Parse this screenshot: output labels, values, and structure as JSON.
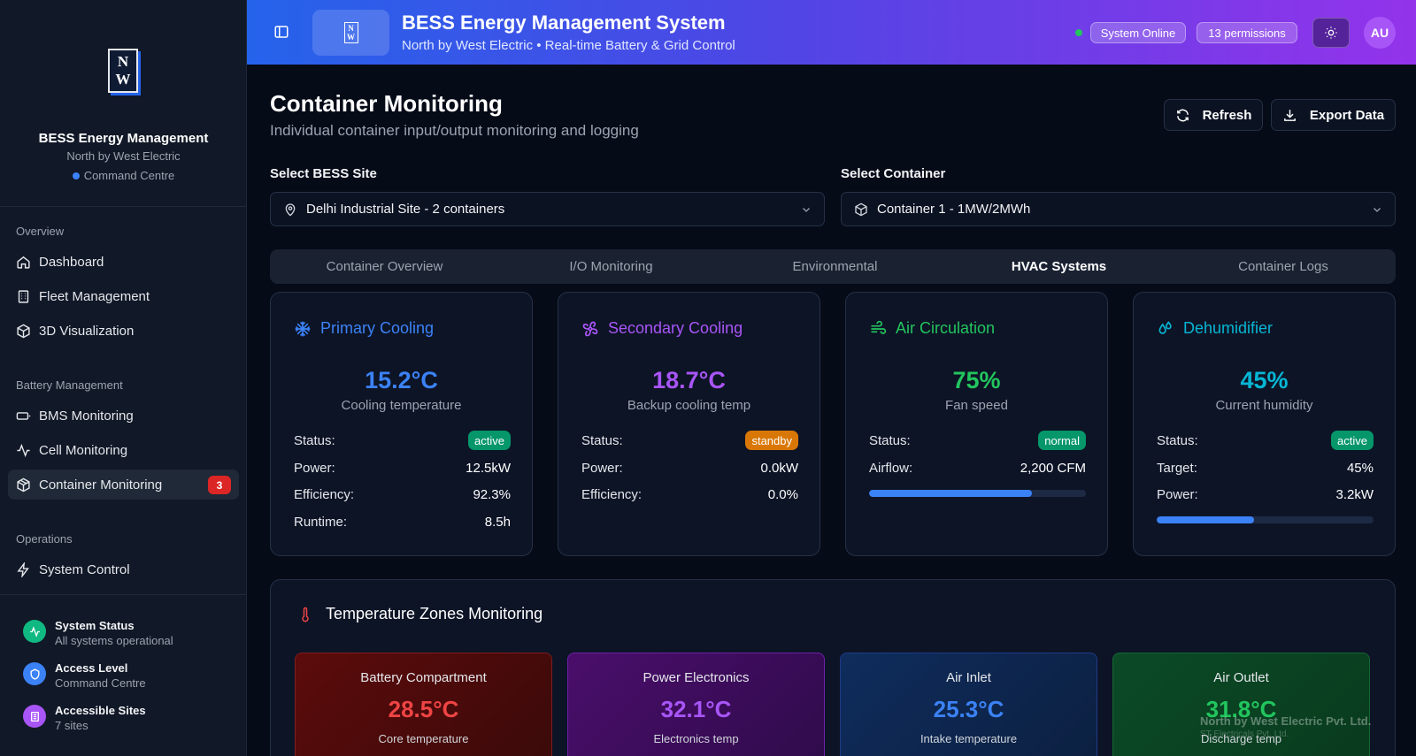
{
  "brand": {
    "logo_top": "N",
    "logo_bottom": "W",
    "title": "BESS Energy Management",
    "subtitle": "North by West Electric",
    "centre": "Command Centre"
  },
  "nav": {
    "overview_label": "Overview",
    "overview_items": [
      {
        "label": "Dashboard",
        "icon": "home-icon"
      },
      {
        "label": "Fleet Management",
        "icon": "building-icon"
      },
      {
        "label": "3D Visualization",
        "icon": "cube-icon"
      }
    ],
    "battery_label": "Battery Management",
    "battery_items": [
      {
        "label": "BMS Monitoring",
        "icon": "battery-icon"
      },
      {
        "label": "Cell Monitoring",
        "icon": "activity-icon"
      },
      {
        "label": "Container Monitoring",
        "icon": "container-icon",
        "badge": "3",
        "active": true
      }
    ],
    "operations_label": "Operations",
    "operations_items": [
      {
        "label": "System Control",
        "icon": "bolt-icon"
      }
    ]
  },
  "sidebar_footer": [
    {
      "title": "System Status",
      "sub": "All systems operational",
      "icon": "activity-icon",
      "color": "#10b981"
    },
    {
      "title": "Access Level",
      "sub": "Command Centre",
      "icon": "shield-icon",
      "color": "#3b82f6"
    },
    {
      "title": "Accessible Sites",
      "sub": "7 sites",
      "icon": "building-icon",
      "color": "#a855f7"
    }
  ],
  "header": {
    "title": "BESS Energy Management System",
    "subtitle": "North by West Electric • Real-time Battery & Grid Control",
    "status": "System Online",
    "permissions": "13 permissions",
    "avatar": "AU"
  },
  "page": {
    "title": "Container Monitoring",
    "subtitle": "Individual container input/output monitoring and logging",
    "refresh_label": "Refresh",
    "export_label": "Export Data"
  },
  "selectors": {
    "site_label": "Select BESS Site",
    "site_value": "Delhi Industrial Site - 2 containers",
    "container_label": "Select Container",
    "container_value": "Container 1 - 1MW/2MWh"
  },
  "tabs": [
    "Container Overview",
    "I/O Monitoring",
    "Environmental",
    "HVAC Systems",
    "Container Logs"
  ],
  "active_tab": "HVAC Systems",
  "hvac_cards": [
    {
      "title": "Primary Cooling",
      "color": "#3b82f6",
      "icon": "snowflake-icon",
      "value": "15.2°C",
      "value_label": "Cooling temperature",
      "status": "active",
      "status_color": "#059669",
      "rows": [
        {
          "label": "Power:",
          "value": "12.5kW"
        },
        {
          "label": "Efficiency:",
          "value": "92.3%"
        },
        {
          "label": "Runtime:",
          "value": "8.5h"
        }
      ]
    },
    {
      "title": "Secondary Cooling",
      "color": "#a855f7",
      "icon": "fan-icon",
      "value": "18.7°C",
      "value_label": "Backup cooling temp",
      "status": "standby",
      "status_color": "#d97706",
      "rows": [
        {
          "label": "Power:",
          "value": "0.0kW"
        },
        {
          "label": "Efficiency:",
          "value": "0.0%"
        }
      ]
    },
    {
      "title": "Air Circulation",
      "color": "#22c55e",
      "icon": "wind-icon",
      "value": "75%",
      "value_label": "Fan speed",
      "status": "normal",
      "status_color": "#059669",
      "rows": [
        {
          "label": "Airflow:",
          "value": "2,200 CFM"
        }
      ],
      "progress": 0.75
    },
    {
      "title": "Dehumidifier",
      "color": "#06b6d4",
      "icon": "droplets-icon",
      "value": "45%",
      "value_label": "Current humidity",
      "status": "active",
      "status_color": "#059669",
      "rows": [
        {
          "label": "Target:",
          "value": "45%"
        },
        {
          "label": "Power:",
          "value": "3.2kW"
        }
      ],
      "progress": 0.45
    }
  ],
  "status_label": "Status:",
  "zones": {
    "title": "Temperature Zones Monitoring",
    "items": [
      {
        "name": "Battery Compartment",
        "value": "28.5°C",
        "sub": "Core temperature",
        "color": "#ef4444"
      },
      {
        "name": "Power Electronics",
        "value": "32.1°C",
        "sub": "Electronics temp",
        "color": "#a855f7"
      },
      {
        "name": "Air Inlet",
        "value": "25.3°C",
        "sub": "Intake temperature",
        "color": "#3b82f6"
      },
      {
        "name": "Air Outlet",
        "value": "31.8°C",
        "sub": "Discharge temp",
        "color": "#22c55e"
      }
    ]
  },
  "watermark": {
    "line1": "North by West Electric Pvt. Ltd.",
    "line2": "ST Electricals Pvt. Ltd."
  }
}
